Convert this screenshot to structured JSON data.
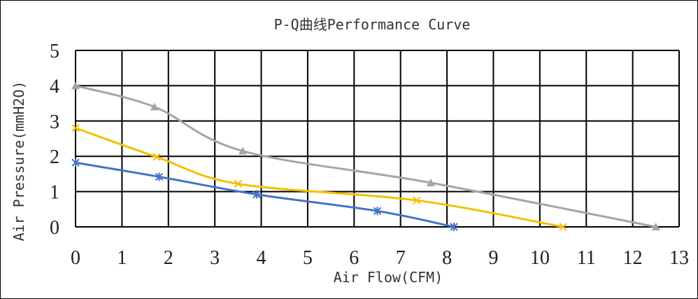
{
  "chart_data": {
    "type": "line",
    "title": "P-Q曲线Performance Curve",
    "xlabel": "Air Flow(CFM)",
    "ylabel": "Air Pressure(mmH2O)",
    "xlim": [
      0,
      13
    ],
    "ylim": [
      0,
      5
    ],
    "xticks": [
      "0",
      "1",
      "2",
      "3",
      "4",
      "5",
      "6",
      "7",
      "8",
      "9",
      "10",
      "11",
      "12",
      "13"
    ],
    "yticks": [
      "0",
      "1",
      "2",
      "3",
      "4",
      "5"
    ],
    "grid": true,
    "legend": "none",
    "series": [
      {
        "color": "#4472C4",
        "marker": "asterisk",
        "points": [
          [
            0,
            1.82
          ],
          [
            1.8,
            1.42
          ],
          [
            3.9,
            0.92
          ],
          [
            6.5,
            0.45
          ],
          [
            8.15,
            0
          ]
        ]
      },
      {
        "color": "#F2C100",
        "marker": "x",
        "points": [
          [
            0,
            2.8
          ],
          [
            1.75,
            1.98
          ],
          [
            3.5,
            1.22
          ],
          [
            7.35,
            0.75
          ],
          [
            10.5,
            0
          ]
        ]
      },
      {
        "color": "#A5A5A5",
        "marker": "triangle",
        "points": [
          [
            0,
            4.0
          ],
          [
            1.7,
            3.4
          ],
          [
            3.6,
            2.15
          ],
          [
            7.65,
            1.25
          ],
          [
            12.5,
            0
          ]
        ]
      }
    ]
  }
}
